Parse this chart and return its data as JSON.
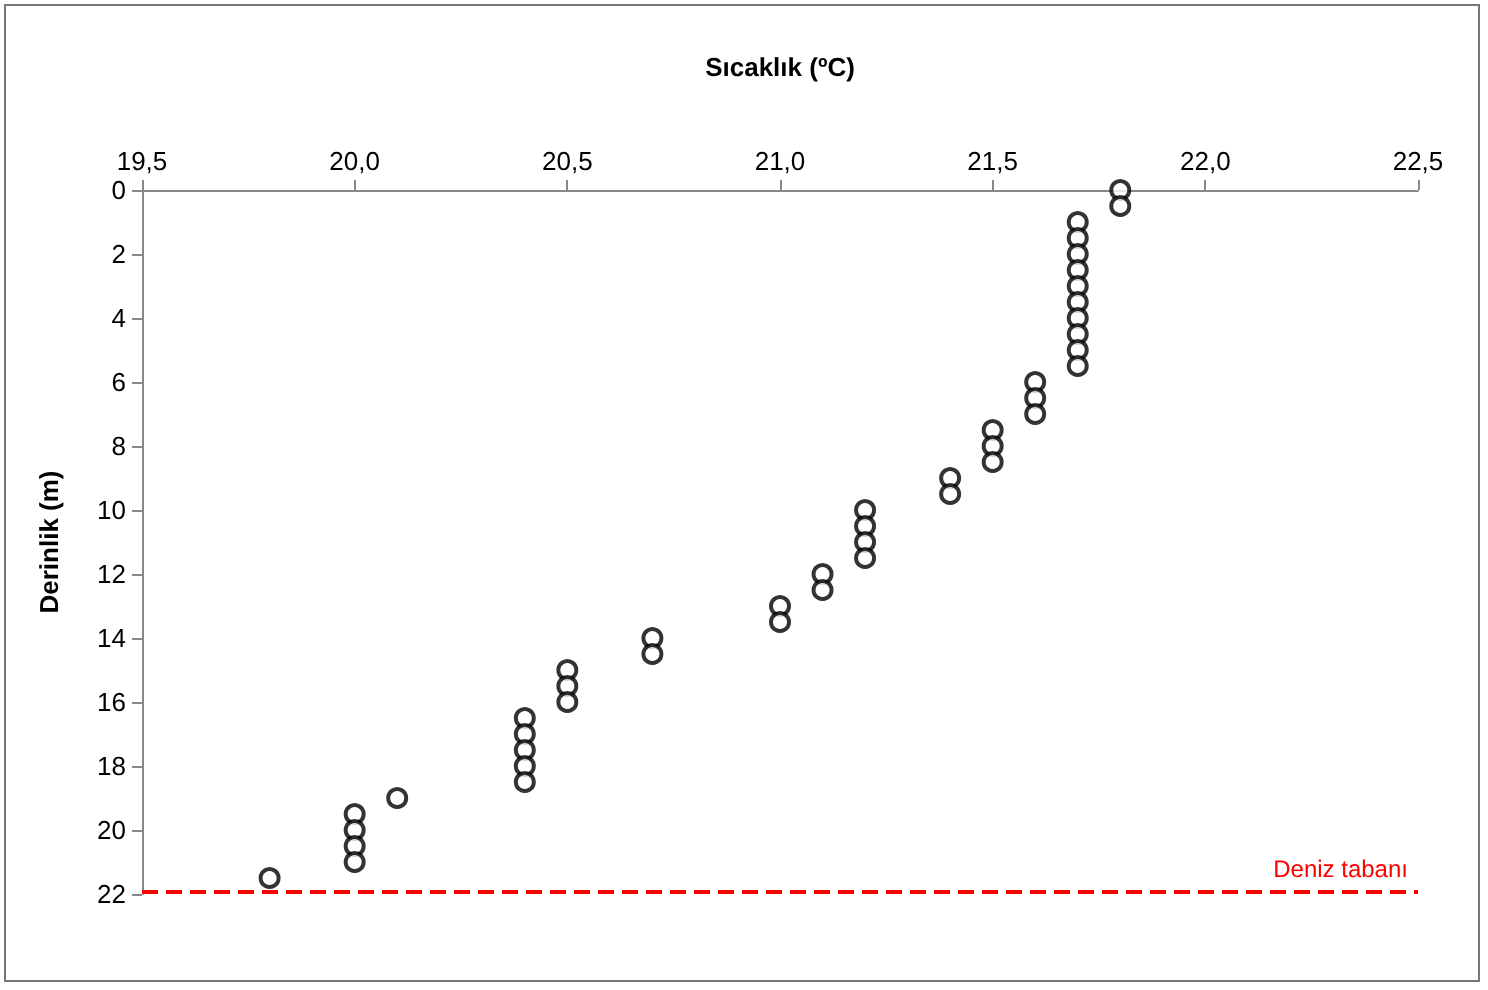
{
  "chart_data": {
    "type": "scatter",
    "xlabel": "Sıcaklık (ºC)",
    "ylabel": "Derinlik (m)",
    "x": [
      21.8,
      21.8,
      21.7,
      21.7,
      21.7,
      21.7,
      21.7,
      21.7,
      21.7,
      21.7,
      21.7,
      21.7,
      21.6,
      21.6,
      21.6,
      21.5,
      21.5,
      21.5,
      21.4,
      21.4,
      21.2,
      21.2,
      21.2,
      21.2,
      21.1,
      21.1,
      21.0,
      21.0,
      20.7,
      20.7,
      20.5,
      20.5,
      20.5,
      20.4,
      20.4,
      20.4,
      20.4,
      20.4,
      20.1,
      20.0,
      20.0,
      20.0,
      20.0,
      19.8
    ],
    "values": [
      0,
      0.5,
      1,
      1.5,
      2,
      2.5,
      3,
      3.5,
      4,
      4.5,
      5,
      5.5,
      6,
      6.5,
      7,
      7.5,
      8,
      8.5,
      9,
      9.5,
      10,
      10.5,
      11,
      11.5,
      12,
      12.5,
      13,
      13.5,
      14,
      14.5,
      15,
      15.5,
      16,
      16.5,
      17,
      17.5,
      18,
      18.5,
      19,
      19.5,
      20,
      20.5,
      21,
      21.5
    ],
    "color": "#000000",
    "marker": "circle",
    "xlim": [
      19.5,
      22.5
    ],
    "xticks": [
      {
        "value": 19.5,
        "label": "19,5"
      },
      {
        "value": 20,
        "label": "20,0"
      },
      {
        "value": 20.5,
        "label": "20,5"
      },
      {
        "value": 21,
        "label": "21,0"
      },
      {
        "value": 21.5,
        "label": "21,5"
      },
      {
        "value": 22,
        "label": "22,0"
      },
      {
        "value": 22.5,
        "label": "22,5"
      }
    ],
    "ylim": [
      22,
      0
    ],
    "yticks": [
      0,
      2,
      4,
      6,
      8,
      10,
      12,
      14,
      16,
      18,
      20,
      22
    ],
    "ref_lines": [
      {
        "axis": "y",
        "value": 21.9,
        "label": "Deniz tabanı",
        "color": "#ff0000",
        "line_style": "dashed"
      }
    ],
    "grid": false
  }
}
